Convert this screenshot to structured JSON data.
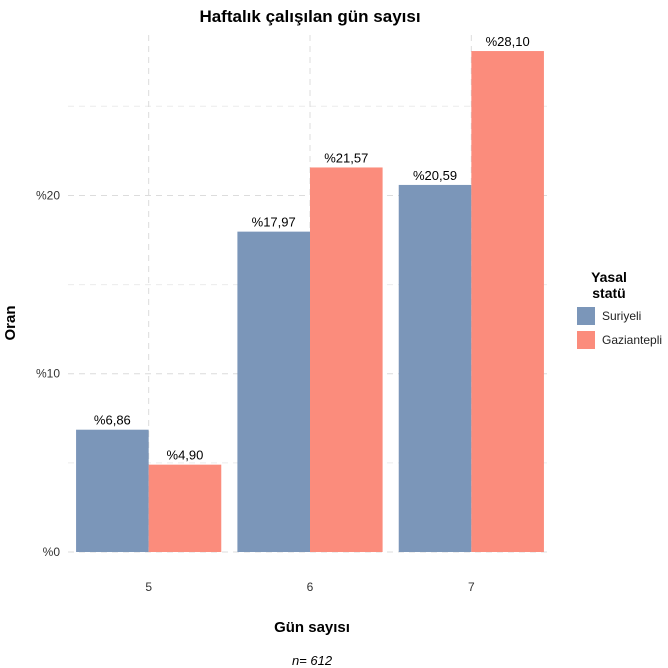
{
  "chart_data": {
    "type": "bar",
    "title": "Haftalık çalışılan gün sayısı",
    "xlabel": "Gün sayısı",
    "ylabel": "Oran",
    "categories": [
      "5",
      "6",
      "7"
    ],
    "series": [
      {
        "name": "Suriyeli",
        "color": "#7b96b9",
        "values": [
          6.86,
          17.97,
          20.59
        ],
        "labels": [
          "%6,86",
          "%17,97",
          "%20,59"
        ]
      },
      {
        "name": "Gaziantepli",
        "color": "#fb8c7c",
        "values": [
          4.9,
          21.57,
          28.1
        ],
        "labels": [
          "%4,90",
          "%21,57",
          "%28,10"
        ]
      }
    ],
    "ylim": [
      0,
      29
    ],
    "yticks": [
      0,
      10,
      20
    ],
    "ytick_labels": [
      "%0",
      "%10",
      "%20"
    ],
    "grid": true,
    "legend": {
      "title_line1": "Yasal",
      "title_line2": "statü",
      "placement": "right"
    },
    "note": "n= 612"
  }
}
